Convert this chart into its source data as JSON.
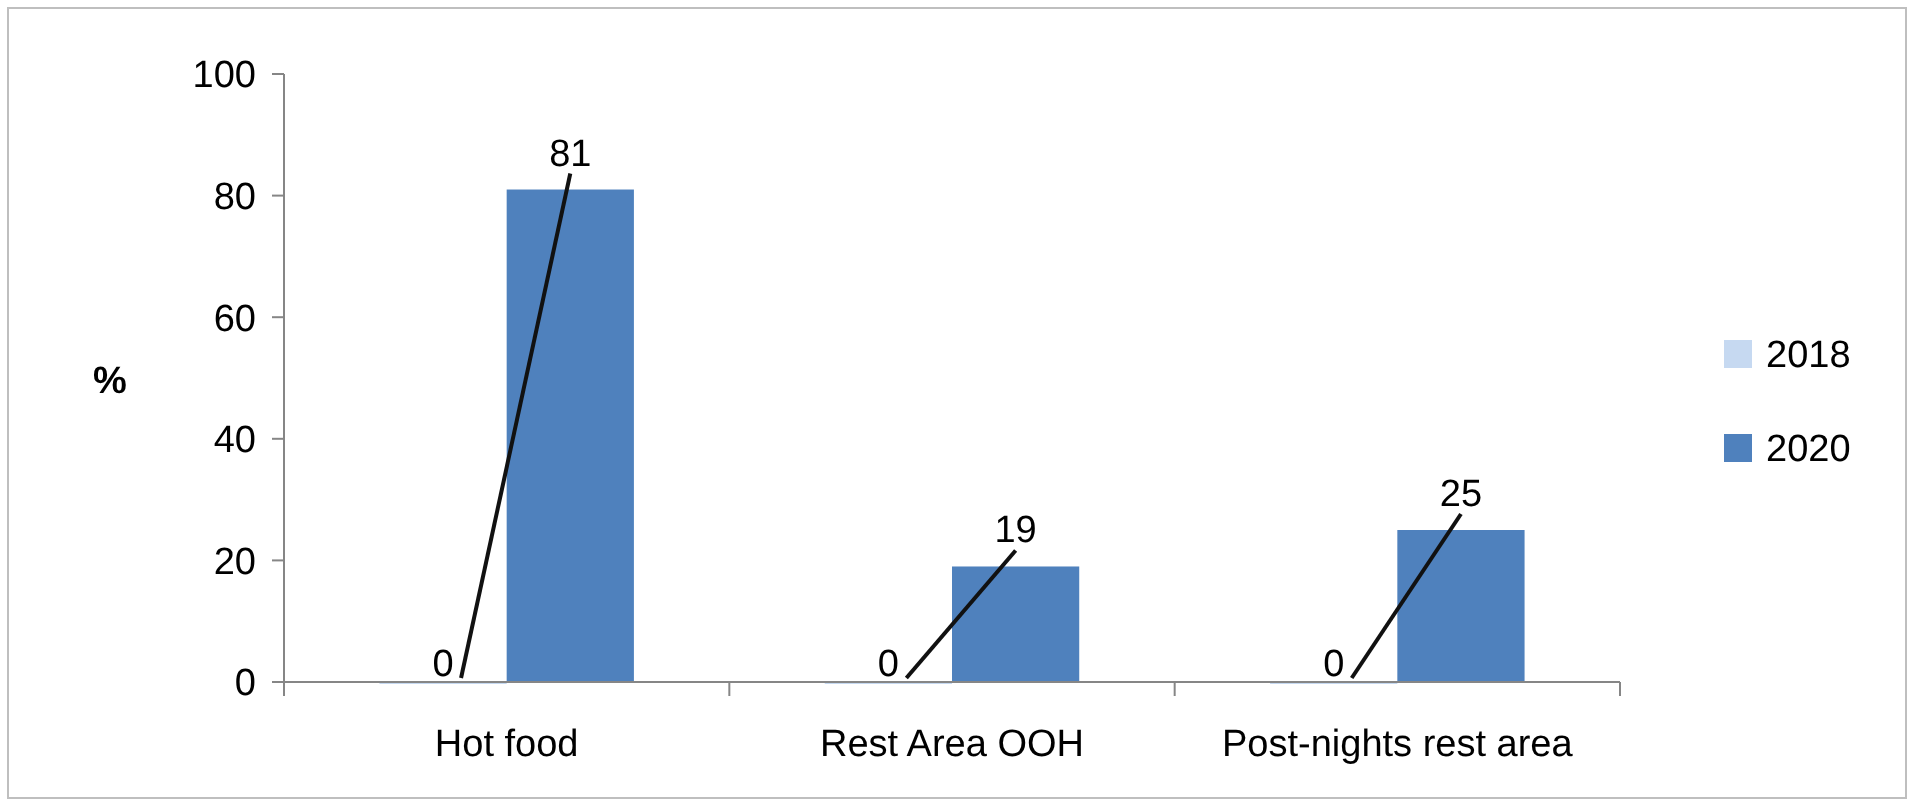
{
  "chart_data": {
    "type": "bar",
    "ylabel": "%",
    "categories": [
      "Hot food",
      "Rest Area OOH",
      "Post-nights rest area"
    ],
    "series": [
      {
        "name": "2018",
        "color": "#c6d9f1",
        "values": [
          0,
          0,
          0
        ]
      },
      {
        "name": "2020",
        "color": "#4f81bd",
        "values": [
          81,
          19,
          25
        ]
      }
    ],
    "ylim": [
      0,
      100
    ],
    "yticks": [
      0,
      20,
      40,
      60,
      80,
      100
    ],
    "grid": false,
    "legend": "right",
    "data_labels": true
  }
}
